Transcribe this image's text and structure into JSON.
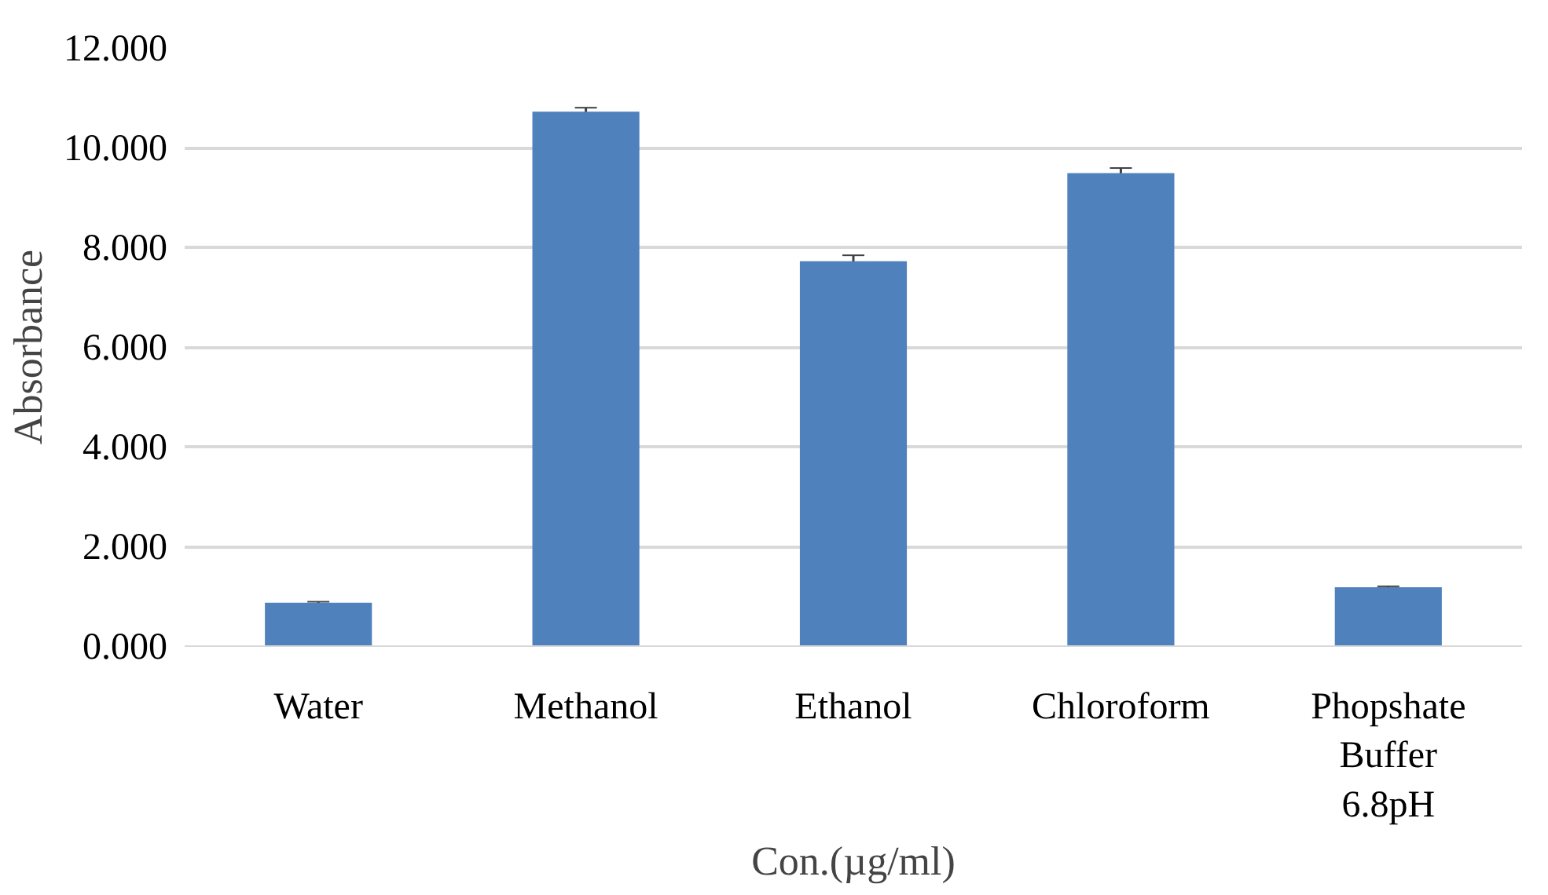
{
  "chart_data": {
    "type": "bar",
    "xlabel": "Con.(µg/ml)",
    "ylabel": "Absorbance",
    "categories": [
      "Water",
      "Methanol",
      "Ethanol",
      "Chloroform",
      "Phopshate Buffer 6.8pH"
    ],
    "values": [
      0.87,
      10.72,
      7.72,
      9.49,
      1.18
    ],
    "errors": [
      0.02,
      0.08,
      0.12,
      0.1,
      0.02
    ],
    "color": "#4f81bd",
    "ylim": [
      0,
      12
    ],
    "yticks": [
      {
        "value": 0,
        "label": "0.000"
      },
      {
        "value": 2,
        "label": "2.000"
      },
      {
        "value": 4,
        "label": "4.000"
      },
      {
        "value": 6,
        "label": "6.000"
      },
      {
        "value": 8,
        "label": "8.000"
      },
      {
        "value": 10,
        "label": "10.000"
      },
      {
        "value": 12,
        "label": "12.000"
      }
    ],
    "grid": "y"
  }
}
